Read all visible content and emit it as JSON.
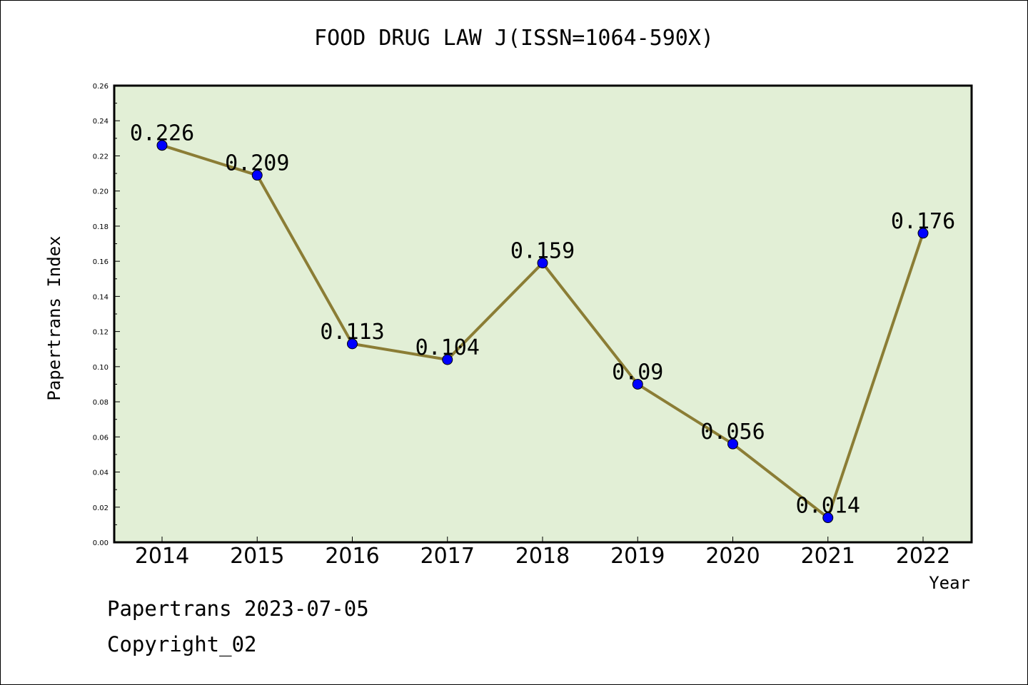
{
  "page": {
    "title": "FOOD DRUG LAW J(ISSN=1064-590X)",
    "footer_line1": "Papertrans 2023-07-05",
    "footer_line2": "Copyright_02"
  },
  "chart_data": {
    "type": "line",
    "title": "FOOD DRUG LAW J(ISSN=1064-590X)",
    "xlabel": "Year",
    "ylabel": "Papertrans Index",
    "x": [
      "2014",
      "2015",
      "2016",
      "2017",
      "2018",
      "2019",
      "2020",
      "2021",
      "2022"
    ],
    "series": [
      {
        "values": [
          0.226,
          0.209,
          0.113,
          0.104,
          0.159,
          0.09,
          0.056,
          0.014,
          0.176
        ]
      }
    ],
    "data_labels": [
      "0.226",
      "0.209",
      "0.113",
      "0.104",
      "0.159",
      "0.09",
      "0.056",
      "0.014",
      "0.176"
    ],
    "ylim": [
      0,
      0.26
    ],
    "yticks": [
      "0.00",
      "0.02",
      "0.04",
      "0.06",
      "0.08",
      "0.10",
      "0.12",
      "0.14",
      "0.16",
      "0.18",
      "0.20",
      "0.22",
      "0.24",
      "0.26"
    ],
    "grid": false,
    "colors": {
      "plot_bg": "#e2efd6",
      "line": "#8b7d35",
      "marker": "#0000ff"
    }
  }
}
